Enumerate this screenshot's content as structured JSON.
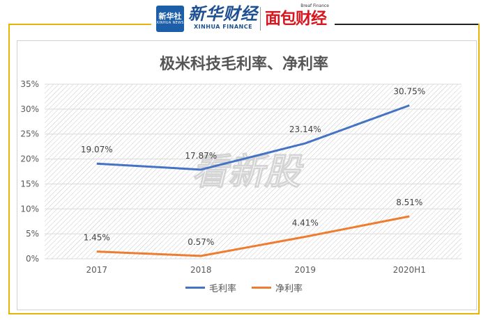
{
  "header": {
    "logo_cn": "新华社",
    "logo_en": "XINHUA NEWS",
    "brand_cn": "新华财经",
    "brand_en": "XINHUA FINANCE",
    "brand2_small": "Breaf Finance",
    "brand2_cn": "面包财经"
  },
  "watermark": "看新股",
  "colors": {
    "gross": "#4472c4",
    "net": "#ed7d31",
    "accent": "#e8b400"
  },
  "chart_data": {
    "type": "line",
    "title": "极米科技毛利率、净利率",
    "categories": [
      "2017",
      "2018",
      "2019",
      "2020H1"
    ],
    "y_tick_labels": [
      "0%",
      "5%",
      "10%",
      "15%",
      "20%",
      "25%",
      "30%",
      "35%"
    ],
    "ylim": [
      0,
      35
    ],
    "grid": true,
    "legend_position": "bottom",
    "series": [
      {
        "name": "毛利率",
        "values": [
          19.07,
          17.87,
          23.14,
          30.75
        ],
        "labels": [
          "19.07%",
          "17.87%",
          "23.14%",
          "30.75%"
        ]
      },
      {
        "name": "净利率",
        "values": [
          1.45,
          0.57,
          4.41,
          8.51
        ],
        "labels": [
          "1.45%",
          "0.57%",
          "4.41%",
          "8.51%"
        ]
      }
    ]
  }
}
